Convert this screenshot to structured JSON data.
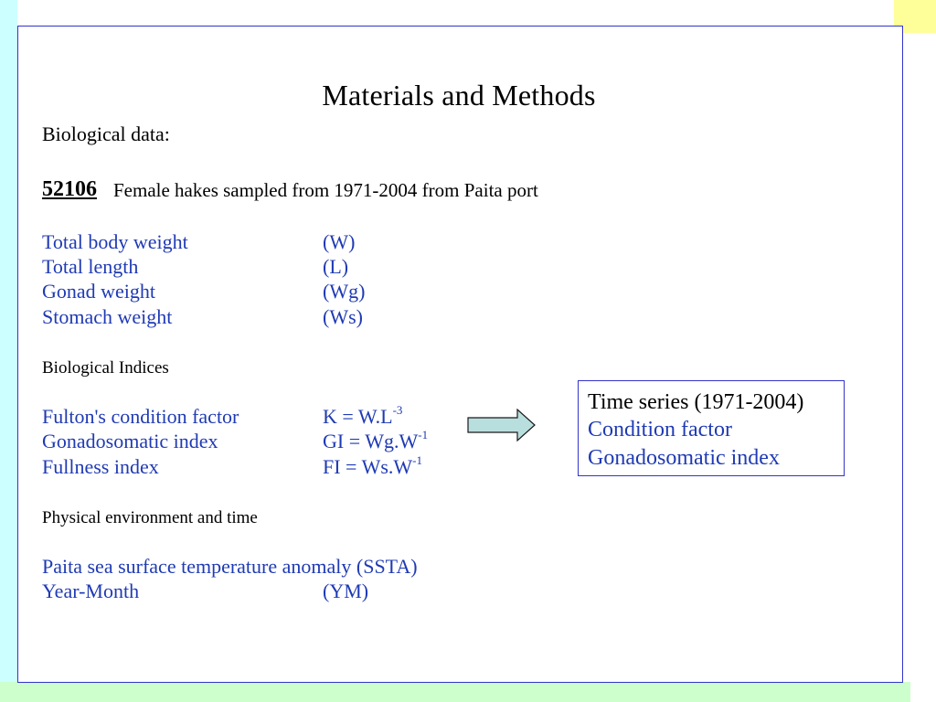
{
  "title": "Materials and Methods",
  "bio_data": {
    "heading": "Biological data:",
    "count": "52106",
    "count_desc": "Female hakes sampled from 1971-2004 from Paita port",
    "variables": [
      {
        "label": "Total body weight",
        "code": "(W)"
      },
      {
        "label": "Total length",
        "code": "(L)"
      },
      {
        "label": "Gonad weight",
        "code": "(Wg)"
      },
      {
        "label": "Stomach weight",
        "code": "(Ws)"
      }
    ]
  },
  "indices": {
    "heading": "Biological Indices",
    "items": [
      {
        "label": "Fulton's condition factor",
        "formula": "K = W.L",
        "exp": "-3"
      },
      {
        "label": "Gonadosomatic index",
        "formula": "GI = Wg.W",
        "exp": "-1"
      },
      {
        "label": "Fullness index",
        "formula": "FI = Ws.W",
        "exp": "-1"
      }
    ]
  },
  "environment": {
    "heading": "Physical environment and time",
    "items": [
      {
        "label": "Paita sea surface temperature anomaly (SSTA)",
        "code": ""
      },
      {
        "label": "Year-Month",
        "code": "(YM)"
      }
    ]
  },
  "summary_box": {
    "line1": "Time series (1971-2004)",
    "line2": "Condition factor",
    "line3": "Gonadosomatic index"
  },
  "colors": {
    "text_blue": "#1f3ab4",
    "frame_border": "#3333cc",
    "arrow_fill": "#b9dede",
    "left_band": "#ccffff",
    "bottom_band": "#ccffcc",
    "corner_block": "#ffff99"
  }
}
